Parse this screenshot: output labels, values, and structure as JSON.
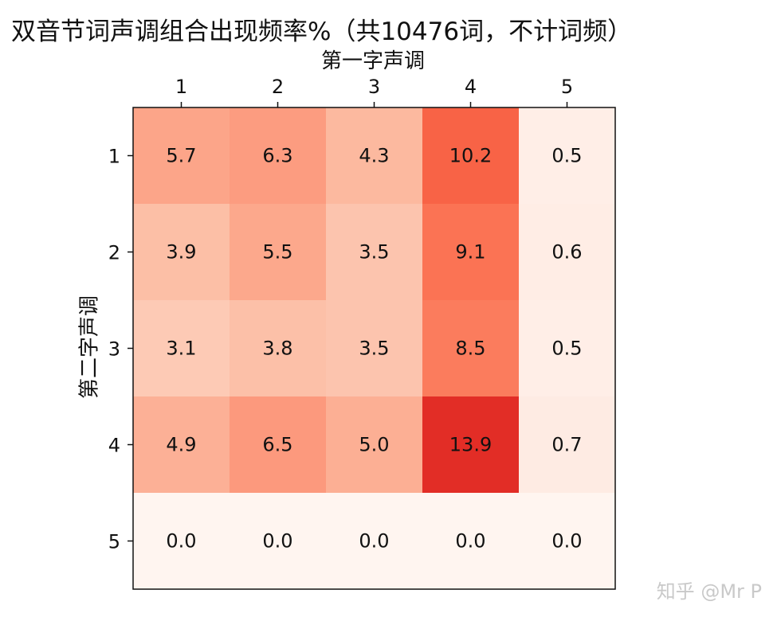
{
  "title": "双音节词声调组合出现频率%（共10476词，不计词频）",
  "watermark": "知乎 @Mr P",
  "chart_data": {
    "type": "heatmap",
    "title": "双音节词声调组合出现频率%（共10476词，不计词频）",
    "xlabel": "第一字声调",
    "ylabel": "第二字声调",
    "x_categories": [
      "1",
      "2",
      "3",
      "4",
      "5"
    ],
    "y_categories": [
      "1",
      "2",
      "3",
      "4",
      "5"
    ],
    "x_axis_position": "top",
    "values": [
      [
        5.7,
        6.3,
        4.3,
        10.2,
        0.5
      ],
      [
        3.9,
        5.5,
        3.5,
        9.1,
        0.6
      ],
      [
        3.1,
        3.8,
        3.5,
        8.5,
        0.5
      ],
      [
        4.9,
        6.5,
        5.0,
        13.9,
        0.7
      ],
      [
        0.0,
        0.0,
        0.0,
        0.0,
        0.0
      ]
    ],
    "value_range": [
      0.0,
      13.9
    ],
    "colormap": "Reds",
    "colormap_low": "#fff5f0",
    "colormap_high": "#e22d26",
    "grid": false,
    "legend": "none"
  }
}
